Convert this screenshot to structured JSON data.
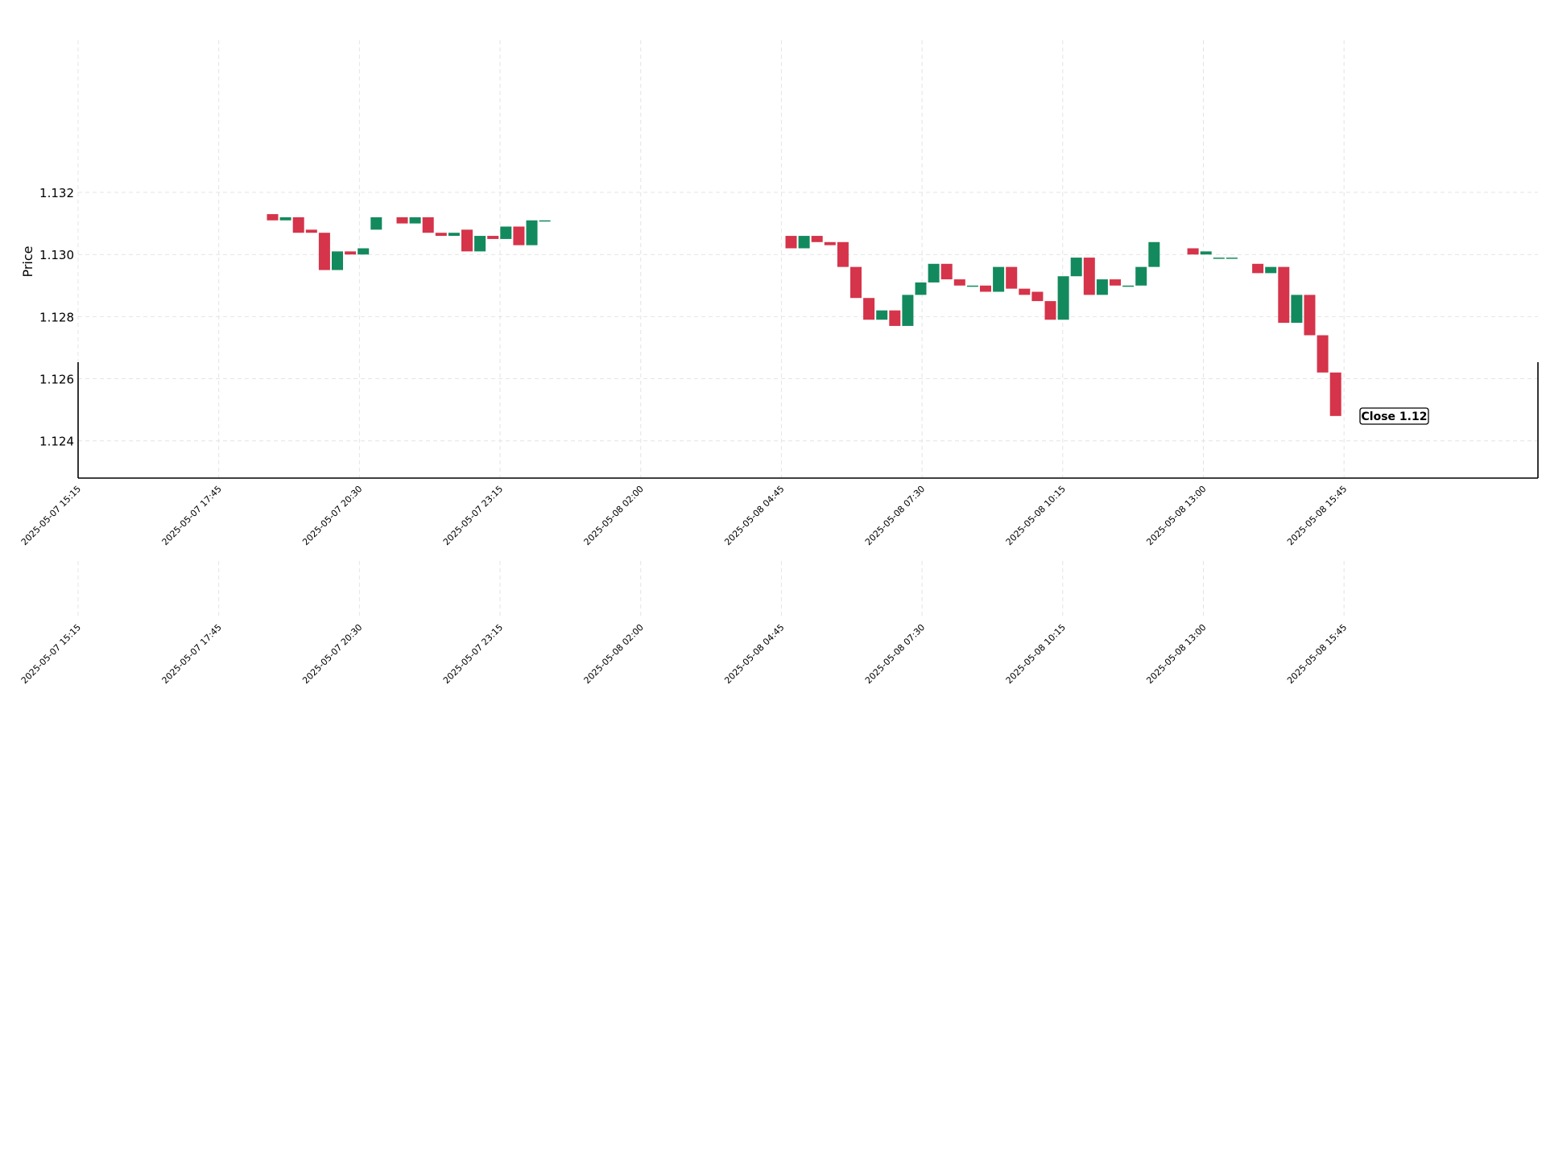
{
  "chart_data": {
    "type": "candlestick",
    "ylabel": "Price",
    "ylim": [
      1.1228,
      1.1369
    ],
    "y_ticks": [
      "1.124",
      "1.126",
      "1.128",
      "1.130",
      "1.132"
    ],
    "x_ticks": [
      "2025-05-07 15:15",
      "2025-05-07 17:45",
      "2025-05-07 20:30",
      "2025-05-07 23:15",
      "2025-05-08 02:00",
      "2025-05-08 04:45",
      "2025-05-08 07:30",
      "2025-05-08 10:15",
      "2025-05-08 13:00",
      "2025-05-08 15:45"
    ],
    "colors": {
      "up": "#138a5e",
      "down": "#d5344a",
      "grid": "#e4e4e4",
      "axis": "#000000"
    },
    "candles": [
      {
        "i": 15,
        "o": 1.1313,
        "c": 1.1311
      },
      {
        "i": 16,
        "o": 1.1311,
        "c": 1.1312
      },
      {
        "i": 17,
        "o": 1.1312,
        "c": 1.1307
      },
      {
        "i": 18,
        "o": 1.1308,
        "c": 1.1307
      },
      {
        "i": 19,
        "o": 1.1307,
        "c": 1.1295
      },
      {
        "i": 20,
        "o": 1.1295,
        "c": 1.1301
      },
      {
        "i": 21,
        "o": 1.1301,
        "c": 1.13
      },
      {
        "i": 22,
        "o": 1.13,
        "c": 1.1302
      },
      {
        "i": 23,
        "o": 1.1308,
        "c": 1.1312
      },
      {
        "i": 25,
        "o": 1.1312,
        "c": 1.131
      },
      {
        "i": 26,
        "o": 1.131,
        "c": 1.1312
      },
      {
        "i": 27,
        "o": 1.1312,
        "c": 1.1307
      },
      {
        "i": 28,
        "o": 1.1307,
        "c": 1.1306
      },
      {
        "i": 29,
        "o": 1.1306,
        "c": 1.1307
      },
      {
        "i": 30,
        "o": 1.1308,
        "c": 1.1301
      },
      {
        "i": 31,
        "o": 1.1301,
        "c": 1.1306
      },
      {
        "i": 32,
        "o": 1.1306,
        "c": 1.1305
      },
      {
        "i": 33,
        "o": 1.1305,
        "c": 1.1309
      },
      {
        "i": 34,
        "o": 1.1309,
        "c": 1.1303
      },
      {
        "i": 35,
        "o": 1.1303,
        "c": 1.1311
      },
      {
        "i": 36,
        "o": 1.1311,
        "c": 1.1311
      },
      {
        "i": 55,
        "o": 1.1306,
        "c": 1.1302
      },
      {
        "i": 56,
        "o": 1.1302,
        "c": 1.1306
      },
      {
        "i": 57,
        "o": 1.1306,
        "c": 1.1304
      },
      {
        "i": 58,
        "o": 1.1304,
        "c": 1.1303
      },
      {
        "i": 59,
        "o": 1.1304,
        "c": 1.1296
      },
      {
        "i": 60,
        "o": 1.1296,
        "c": 1.1286
      },
      {
        "i": 61,
        "o": 1.1286,
        "c": 1.1279
      },
      {
        "i": 62,
        "o": 1.1279,
        "c": 1.1282
      },
      {
        "i": 63,
        "o": 1.1282,
        "c": 1.1277
      },
      {
        "i": 64,
        "o": 1.1277,
        "c": 1.1287
      },
      {
        "i": 65,
        "o": 1.1287,
        "c": 1.1291
      },
      {
        "i": 66,
        "o": 1.1291,
        "c": 1.1297
      },
      {
        "i": 67,
        "o": 1.1297,
        "c": 1.1292
      },
      {
        "i": 68,
        "o": 1.1292,
        "c": 1.129
      },
      {
        "i": 69,
        "o": 1.129,
        "c": 1.129
      },
      {
        "i": 70,
        "o": 1.129,
        "c": 1.1288
      },
      {
        "i": 71,
        "o": 1.1288,
        "c": 1.1296
      },
      {
        "i": 72,
        "o": 1.1296,
        "c": 1.1289
      },
      {
        "i": 73,
        "o": 1.1289,
        "c": 1.1287
      },
      {
        "i": 74,
        "o": 1.1288,
        "c": 1.1285
      },
      {
        "i": 75,
        "o": 1.1285,
        "c": 1.1279
      },
      {
        "i": 76,
        "o": 1.1279,
        "c": 1.1293
      },
      {
        "i": 77,
        "o": 1.1293,
        "c": 1.1299
      },
      {
        "i": 78,
        "o": 1.1299,
        "c": 1.1287
      },
      {
        "i": 79,
        "o": 1.1287,
        "c": 1.1292
      },
      {
        "i": 80,
        "o": 1.1292,
        "c": 1.129
      },
      {
        "i": 81,
        "o": 1.129,
        "c": 1.129
      },
      {
        "i": 82,
        "o": 1.129,
        "c": 1.1296
      },
      {
        "i": 83,
        "o": 1.1296,
        "c": 1.1304
      },
      {
        "i": 86,
        "o": 1.1302,
        "c": 1.13
      },
      {
        "i": 87,
        "o": 1.13,
        "c": 1.1301
      },
      {
        "i": 88,
        "o": 1.1299,
        "c": 1.1299
      },
      {
        "i": 89,
        "o": 1.1299,
        "c": 1.1299
      },
      {
        "i": 91,
        "o": 1.1297,
        "c": 1.1294
      },
      {
        "i": 92,
        "o": 1.1294,
        "c": 1.1296
      },
      {
        "i": 93,
        "o": 1.1296,
        "c": 1.1278
      },
      {
        "i": 94,
        "o": 1.1278,
        "c": 1.1287
      },
      {
        "i": 95,
        "o": 1.1287,
        "c": 1.1274
      },
      {
        "i": 96,
        "o": 1.1274,
        "c": 1.1262
      },
      {
        "i": 97,
        "o": 1.1262,
        "c": 1.1248
      }
    ],
    "annotation": "Close 1.12"
  }
}
